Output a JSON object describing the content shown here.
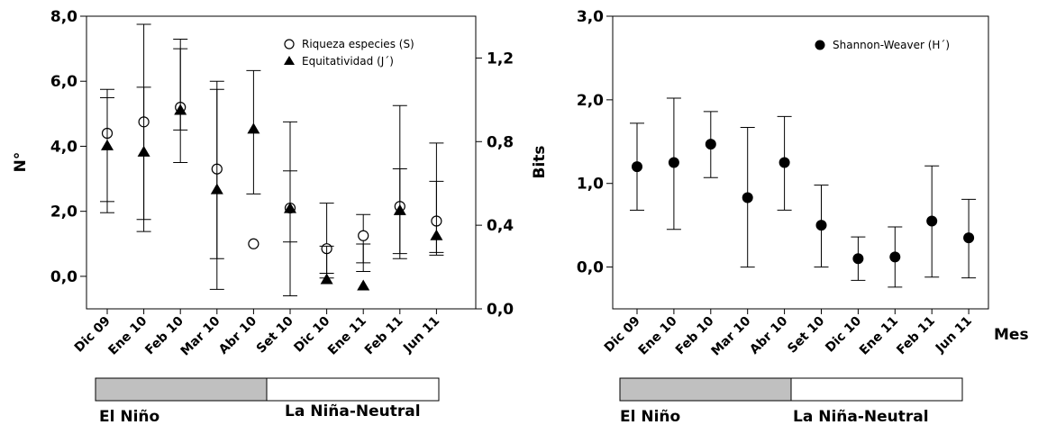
{
  "chart_data": [
    {
      "type": "scatter",
      "ylabel": "N°",
      "categories": [
        "Dic 09",
        "Ene 10",
        "Feb 10",
        "Mar 10",
        "Abr 10",
        "Set 10",
        "Dic 10",
        "Ene 11",
        "Feb 11",
        "Jun 11"
      ],
      "ylim": [
        -1.0,
        8.0
      ],
      "yticks": [
        "0,0",
        "2,0",
        "4,0",
        "6,0",
        "8,0"
      ],
      "ylim_right": [
        0.0,
        1.4
      ],
      "yticks_right": [
        "0,0",
        "0,4",
        "0,8",
        "1,2"
      ],
      "legend_position": "top-right",
      "series": [
        {
          "name": "Riqueza especies (S)",
          "axis": "left",
          "marker": "open-circle",
          "values": [
            4.4,
            4.75,
            5.2,
            3.3,
            1.0,
            2.1,
            0.85,
            1.25,
            2.15,
            1.7
          ],
          "err_low": [
            2.3,
            1.75,
            4.5,
            -0.4,
            null,
            -0.6,
            -0.05,
            0.15,
            0.7,
            0.65
          ],
          "err_high": [
            5.75,
            7.75,
            7.0,
            6.0,
            null,
            4.75,
            2.25,
            1.9,
            5.25,
            4.1
          ]
        },
        {
          "name": "Equitatividad (J´)",
          "axis": "right",
          "marker": "filled-triangle",
          "values": [
            0.78,
            0.75,
            0.95,
            0.57,
            0.86,
            0.48,
            0.14,
            0.11,
            0.47,
            0.35
          ],
          "err_low": [
            0.46,
            0.37,
            0.7,
            0.24,
            0.55,
            0.32,
            0.17,
            0.22,
            0.24,
            0.27
          ],
          "err_high": [
            1.01,
            1.06,
            1.29,
            1.05,
            1.14,
            0.66,
            0.3,
            0.31,
            0.67,
            0.61
          ]
        }
      ]
    },
    {
      "type": "scatter",
      "ylabel": "Bits",
      "xlabel": "Mes",
      "categories": [
        "Dic 09",
        "Ene 10",
        "Feb 10",
        "Mar 10",
        "Abr 10",
        "Set 10",
        "Dic 10",
        "Ene 11",
        "Feb 11",
        "Jun 11"
      ],
      "ylim": [
        -0.5,
        3.0
      ],
      "yticks": [
        "0,0",
        "1,0",
        "2,0",
        "3,0"
      ],
      "legend_position": "top-right",
      "series": [
        {
          "name": "Shannon-Weaver (H´)",
          "marker": "filled-circle",
          "values": [
            1.2,
            1.25,
            1.47,
            0.83,
            1.25,
            0.5,
            0.1,
            0.12,
            0.55,
            0.35
          ],
          "err_low": [
            0.68,
            0.45,
            1.07,
            0.0,
            0.68,
            0.0,
            -0.16,
            -0.24,
            -0.12,
            -0.13
          ],
          "err_high": [
            1.72,
            2.02,
            1.86,
            1.67,
            1.8,
            0.98,
            0.36,
            0.48,
            1.21,
            0.81
          ]
        }
      ]
    }
  ],
  "phases": {
    "el_nino": "El Niño",
    "la_nina": "La Niña-Neutral",
    "el_nino_color": "#c0c0c0",
    "la_nina_color": "#ffffff"
  }
}
